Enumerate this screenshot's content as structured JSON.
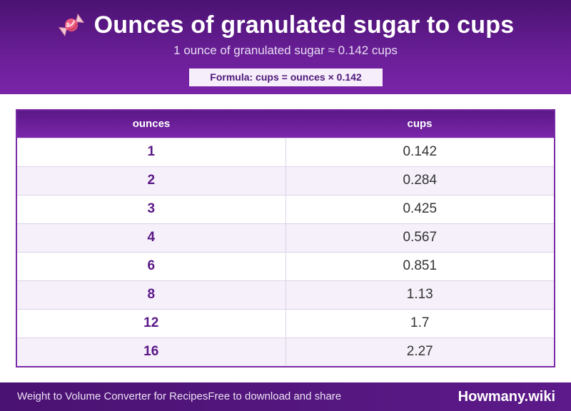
{
  "header": {
    "icon": "candy-icon",
    "title": "Ounces of granulated sugar to cups",
    "subtitle": "1 ounce of granulated sugar ≈ 0.142 cups",
    "formula": "Formula: cups = ounces × 0.142"
  },
  "table": {
    "columns": [
      "ounces",
      "cups"
    ],
    "rows": [
      [
        "1",
        "0.142"
      ],
      [
        "2",
        "0.284"
      ],
      [
        "3",
        "0.425"
      ],
      [
        "4",
        "0.567"
      ],
      [
        "6",
        "0.851"
      ],
      [
        "8",
        "1.13"
      ],
      [
        "12",
        "1.7"
      ],
      [
        "16",
        "2.27"
      ]
    ]
  },
  "footer": {
    "left_text": "Weight to Volume Converter for Recipes",
    "middle_text": "Free to download and share",
    "brand": "Howmany.wiki"
  },
  "colors": {
    "header_purple": "#6b1f98",
    "accent_dark": "#4a1272",
    "row_alt": "#f5f0fa"
  }
}
